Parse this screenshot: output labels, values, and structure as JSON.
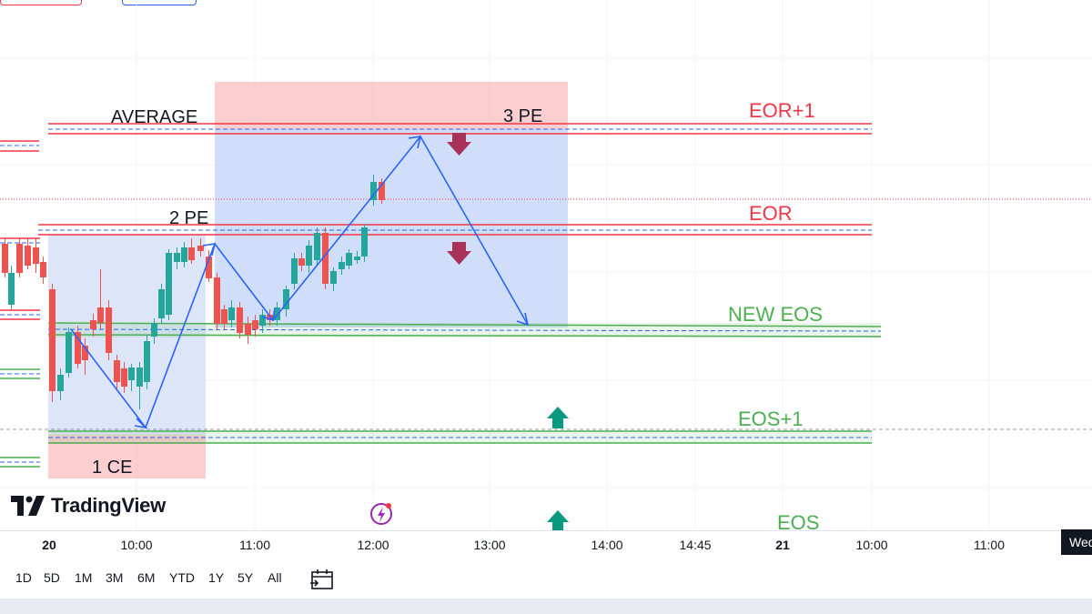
{
  "logo": {
    "text": "TradingView"
  },
  "annotations": {
    "average": "AVERAGE",
    "pe3": "3 PE",
    "pe2": "2 PE",
    "ce1": "1 CE",
    "eor_plus1": "EOR+1",
    "eor": "EOR",
    "new_eos": "NEW EOS",
    "eos_plus1": "EOS+1",
    "eos": "EOS"
  },
  "time_axis": {
    "ticks": [
      {
        "label": "20",
        "bold": true
      },
      {
        "label": "10:00",
        "bold": false
      },
      {
        "label": "11:00",
        "bold": false
      },
      {
        "label": "12:00",
        "bold": false
      },
      {
        "label": "13:00",
        "bold": false
      },
      {
        "label": "14:00",
        "bold": false
      },
      {
        "label": "14:45",
        "bold": false
      },
      {
        "label": "21",
        "bold": true
      },
      {
        "label": "10:00",
        "bold": false
      },
      {
        "label": "11:00",
        "bold": false
      }
    ],
    "cursor_label": "Wed"
  },
  "range_buttons": [
    "1D",
    "5D",
    "1M",
    "3M",
    "6M",
    "YTD",
    "1Y",
    "5Y",
    "All"
  ],
  "colors": {
    "bull": "#26a69a",
    "bear": "#ef5350",
    "resistance": "#f23645",
    "support": "#4caf50",
    "path": "#2962ff",
    "down_arrow": "#a8325a",
    "up_arrow": "#089981",
    "zone_red": "#f7a8aa",
    "zone_blue": "#b3c8f5"
  },
  "icons": {
    "logo": "tradingview-logo-icon",
    "flash": "flash-icon",
    "date_range": "calendar-range-icon"
  }
}
